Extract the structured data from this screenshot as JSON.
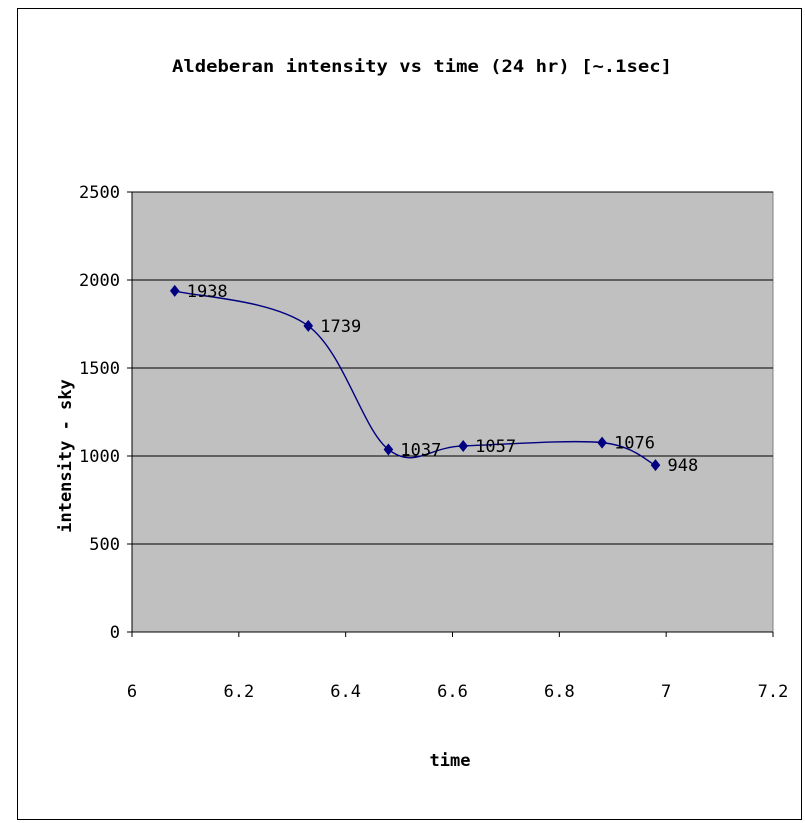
{
  "chart_data": {
    "type": "scatter",
    "title": "Aldeberan intensity vs time (24 hr) [~.1sec]",
    "xlabel": "time",
    "ylabel": "intensity - sky",
    "xlim": [
      6,
      7.2
    ],
    "ylim": [
      0,
      2500
    ],
    "xticks": [
      "6",
      "6.2",
      "6.4",
      "6.6",
      "6.8",
      "7",
      "7.2"
    ],
    "yticks": [
      "0",
      "500",
      "1000",
      "1500",
      "2000",
      "2500"
    ],
    "grid": "horizontal",
    "legend": "none",
    "marker": "diamond",
    "line": "smoothed",
    "series": [
      {
        "x": [
          6.08,
          6.33,
          6.48,
          6.62,
          6.88,
          6.98
        ],
        "y": [
          1938,
          1739,
          1037,
          1057,
          1076,
          948
        ],
        "labels": [
          "1938",
          "1739",
          "1037",
          "1057",
          "1076",
          "948"
        ]
      }
    ]
  },
  "colors": {
    "plot_area": "#c0c0c0",
    "series": "#000080",
    "grid": "#000000"
  }
}
